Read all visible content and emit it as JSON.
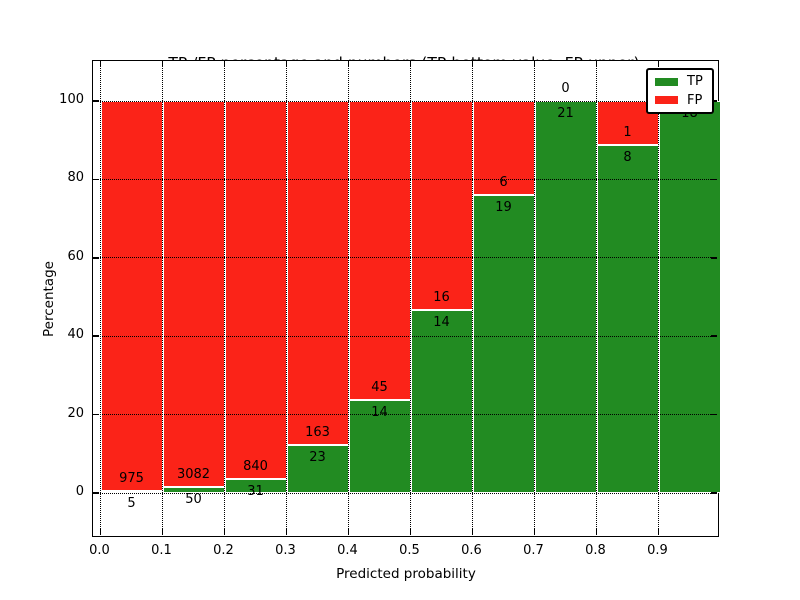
{
  "title": {
    "line1": "TP /FP percentage and numbers (TP-bottom value, FP-upper)",
    "line2": "from among 5331 submitted L-type contacts"
  },
  "axes": {
    "xlabel": "Predicted probability",
    "ylabel": "Percentage",
    "x_tick_labels": [
      "0.0",
      "0.1",
      "0.2",
      "0.3",
      "0.4",
      "0.5",
      "0.6",
      "0.7",
      "0.8",
      "0.9"
    ],
    "y_tick_labels": [
      "0",
      "20",
      "40",
      "60",
      "80",
      "100"
    ],
    "y_tick_values": [
      0,
      20,
      40,
      60,
      80,
      100
    ]
  },
  "legend": {
    "items": [
      {
        "label": "TP",
        "color": "#228b22"
      },
      {
        "label": "FP",
        "color": "#fb2318"
      }
    ]
  },
  "chart_data": {
    "type": "bar",
    "stacked": true,
    "title": "TP /FP percentage and numbers (TP-bottom value, FP-upper) from among 5331 submitted L-type contacts",
    "xlabel": "Predicted probability",
    "ylabel": "Percentage",
    "total_contacts": 5331,
    "x_bin_edges": [
      0.0,
      0.1,
      0.2,
      0.3,
      0.4,
      0.5,
      0.6,
      0.7,
      0.8,
      0.9,
      1.0
    ],
    "categories": [
      "0.0-0.1",
      "0.1-0.2",
      "0.2-0.3",
      "0.3-0.4",
      "0.4-0.5",
      "0.5-0.6",
      "0.6-0.7",
      "0.7-0.8",
      "0.8-0.9",
      "0.9-1.0"
    ],
    "series": [
      {
        "name": "TP",
        "color": "#228b22",
        "counts": [
          5,
          50,
          31,
          23,
          14,
          14,
          19,
          21,
          8,
          18
        ]
      },
      {
        "name": "FP",
        "color": "#fb2318",
        "counts": [
          975,
          3082,
          840,
          163,
          45,
          16,
          6,
          0,
          1,
          0
        ]
      }
    ],
    "tp_percent": [
      0.51,
      1.6,
      3.56,
      12.37,
      23.73,
      46.67,
      76.0,
      100.0,
      88.89,
      100.0
    ],
    "ylim": [
      -11.5,
      110.2
    ],
    "xlim": [
      -0.012,
      1.0
    ],
    "grid": "dotted",
    "legend_position": "upper right"
  }
}
